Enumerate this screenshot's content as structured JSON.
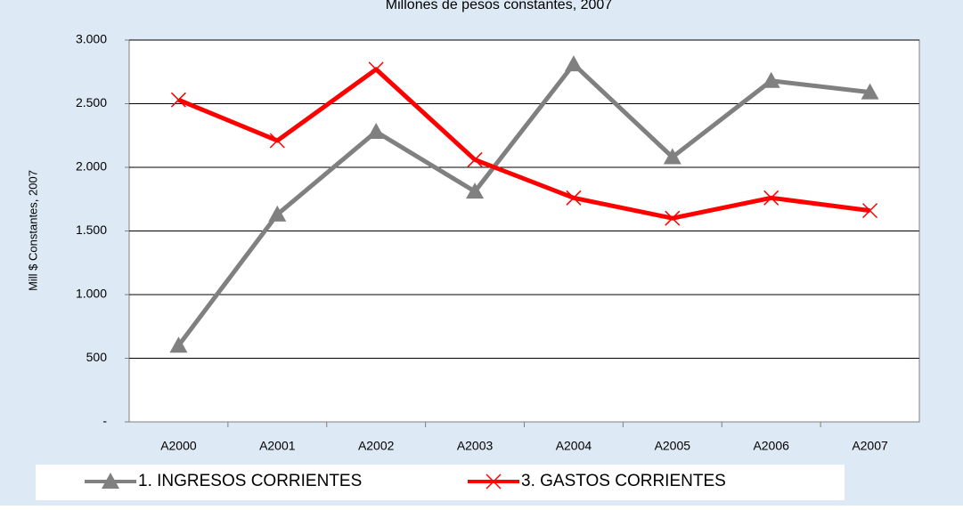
{
  "chart_data": {
    "type": "line",
    "title": "Millones de pesos constantes, 2007",
    "ylabel": "Mill $ Constantes, 2007",
    "categories": [
      "A2000",
      "A2001",
      "A2002",
      "A2003",
      "A2004",
      "A2005",
      "A2006",
      "A2007"
    ],
    "series": [
      {
        "name": "1. INGRESOS CORRIENTES",
        "color": "#808080",
        "marker": "triangle",
        "values": [
          600,
          1630,
          2280,
          1810,
          2810,
          2080,
          2680,
          2590
        ]
      },
      {
        "name": "3. GASTOS CORRIENTES",
        "color": "#ff0000",
        "marker": "x",
        "values": [
          2530,
          2210,
          2770,
          2060,
          1760,
          1600,
          1760,
          1660
        ]
      }
    ],
    "ylim": [
      0,
      3000
    ],
    "yticks": [
      {
        "value": 0,
        "label": "-"
      },
      500,
      {
        "value": 1000,
        "label": "1.000"
      },
      {
        "value": 1500,
        "label": "1.500"
      },
      {
        "value": 2000,
        "label": "2.000"
      },
      {
        "value": 2500,
        "label": "2.500"
      },
      {
        "value": 3000,
        "label": "3.000"
      }
    ],
    "grid": true
  }
}
